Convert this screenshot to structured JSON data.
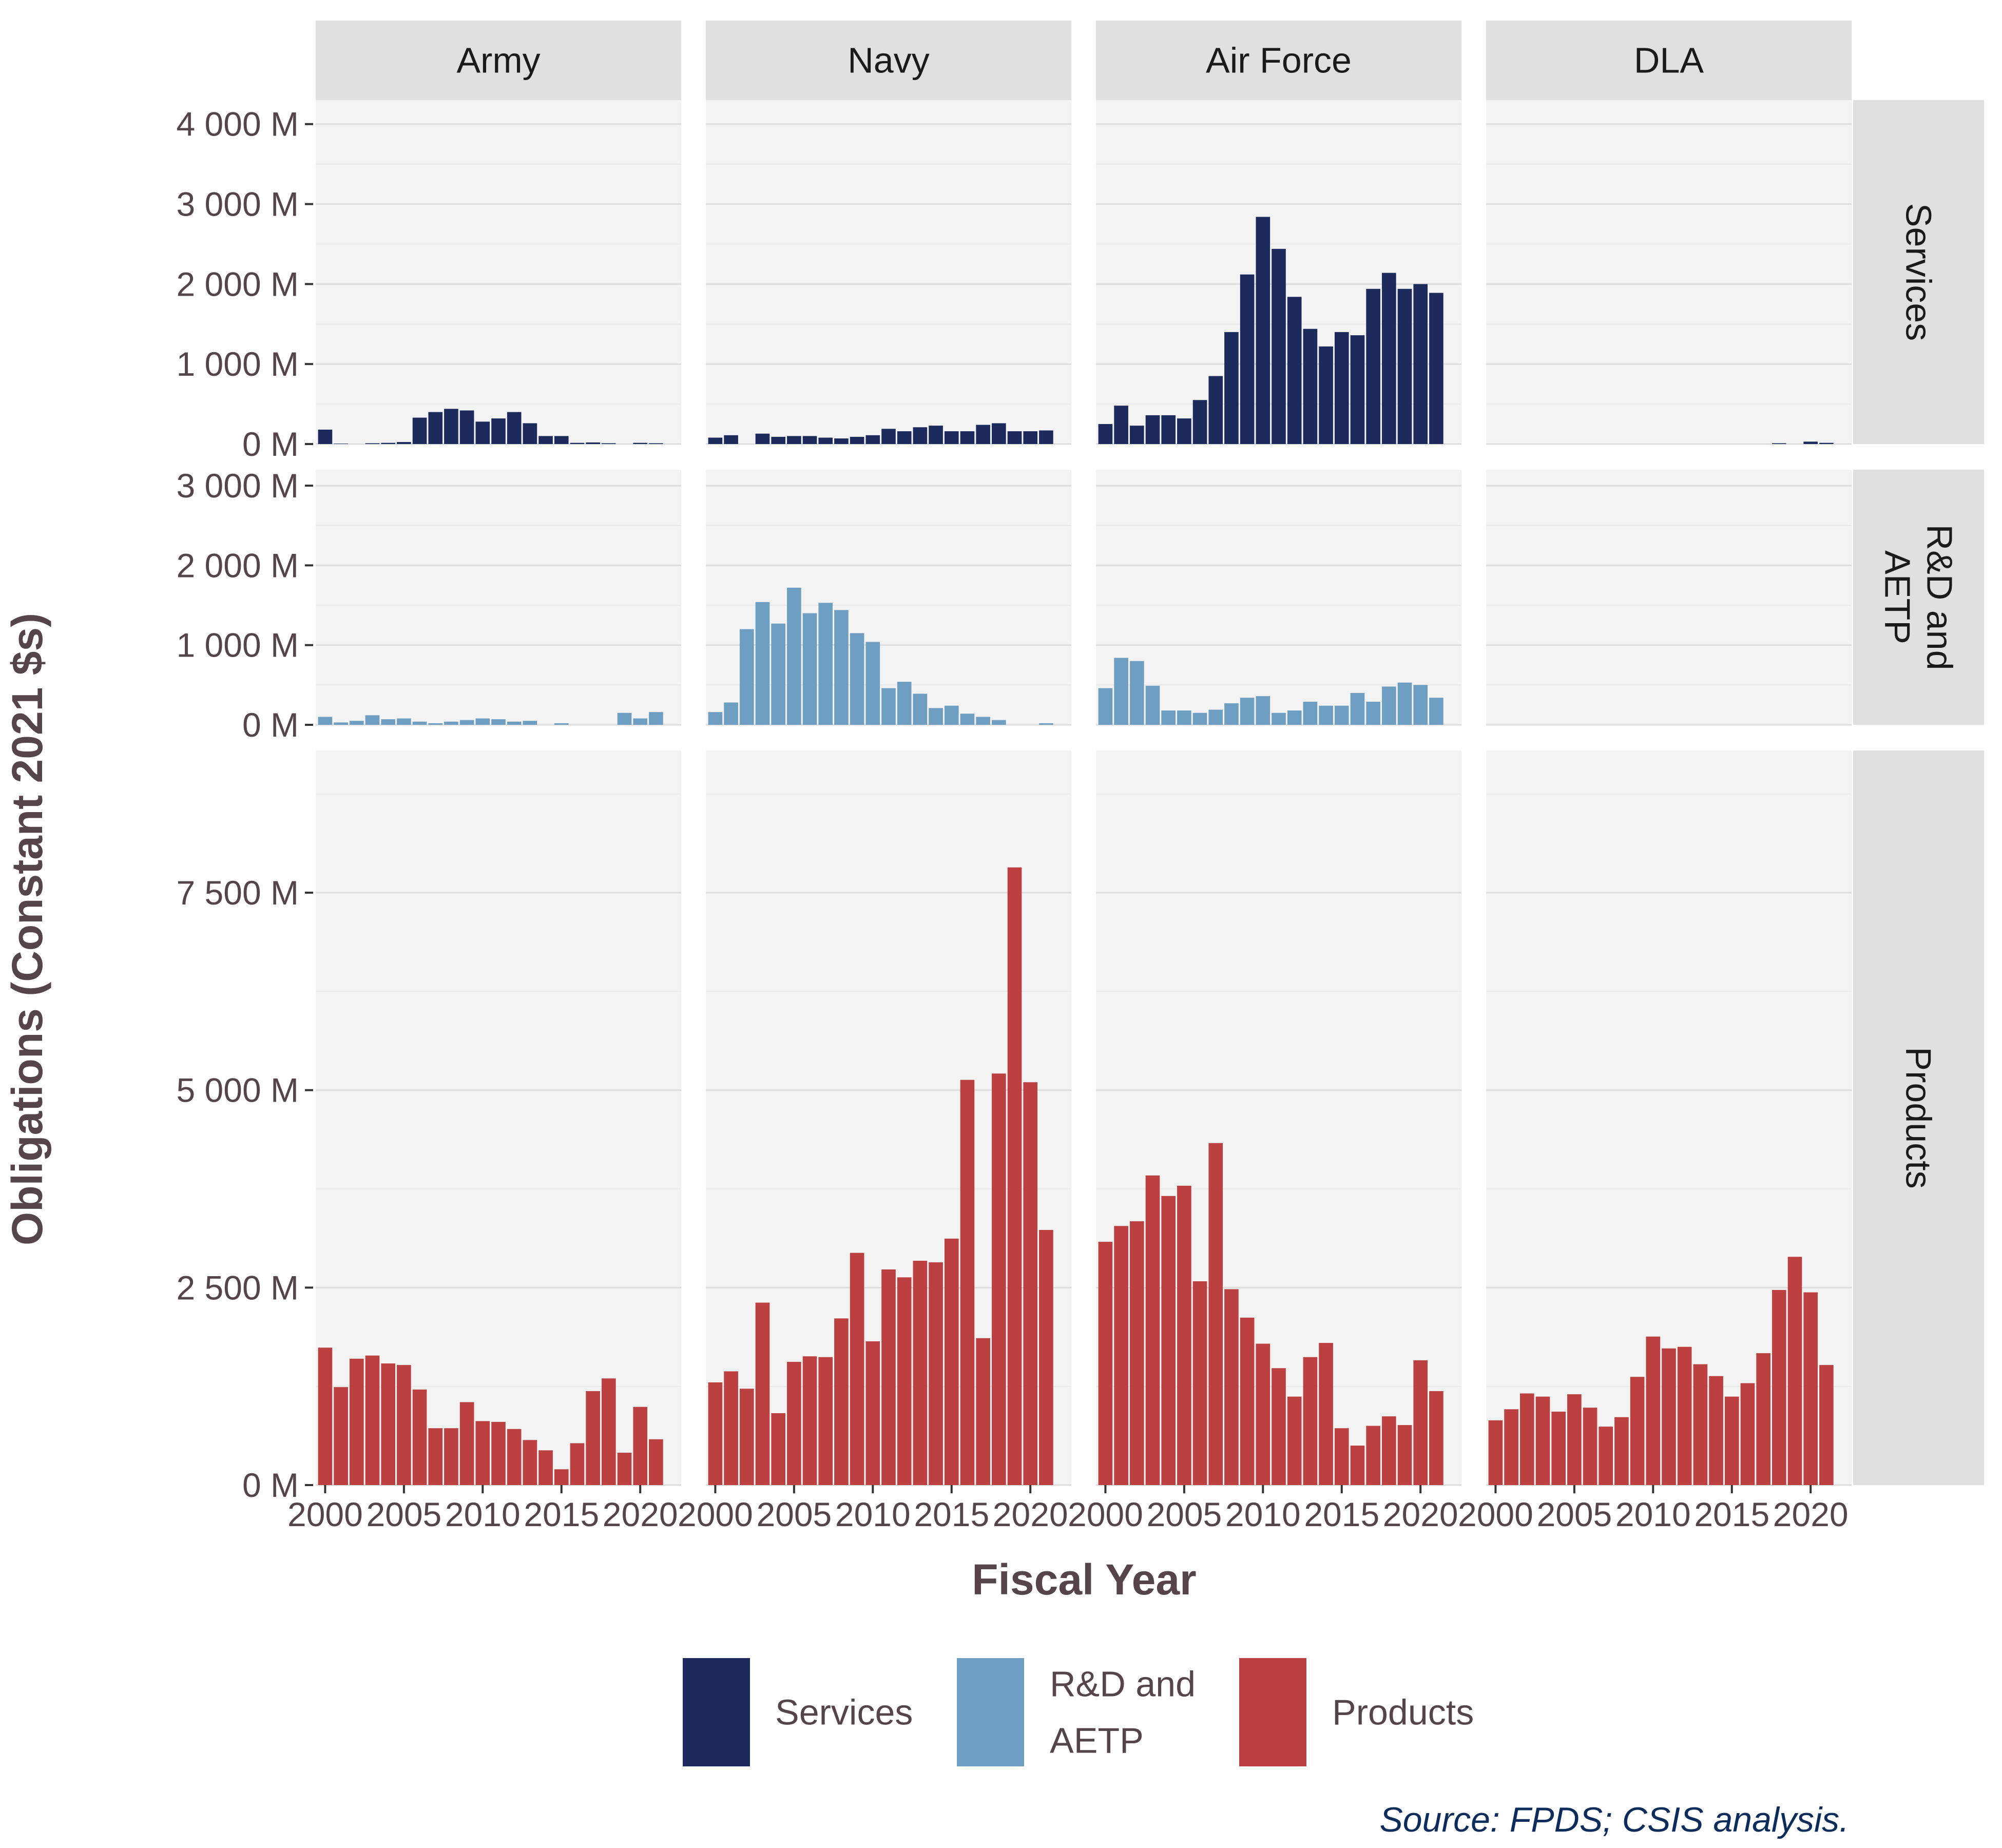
{
  "chart_data": {
    "type": "bar",
    "x_label": "Fiscal Year",
    "y_label": "Obligations (Constant 2021 $s)",
    "source": "Source: FPDS; CSIS analysis.",
    "years": [
      2000,
      2001,
      2002,
      2003,
      2004,
      2005,
      2006,
      2007,
      2008,
      2009,
      2010,
      2011,
      2012,
      2013,
      2014,
      2015,
      2016,
      2017,
      2018,
      2019,
      2020,
      2021
    ],
    "x_tick_values": [
      2000,
      2005,
      2010,
      2015,
      2020
    ],
    "x_tick_labels": [
      "2000",
      "2005",
      "2010",
      "2015",
      "2020"
    ],
    "column_facets": [
      "Army",
      "Navy",
      "Air Force",
      "DLA"
    ],
    "colors": {
      "Services": "#1d2b5c",
      "R&D and AETP": "#6e9ec2",
      "Products": "#bc4040"
    },
    "panel_background": "#f3f3f3",
    "strip_background": "#e0e0e0",
    "grid": true,
    "legend_position": "bottom",
    "legend": [
      {
        "key": "Services",
        "lines": [
          "Services"
        ]
      },
      {
        "key": "R&D and AETP",
        "lines": [
          "R&D and",
          "AETP"
        ]
      },
      {
        "key": "Products",
        "lines": [
          "Products"
        ]
      }
    ],
    "rows": [
      {
        "label_lines": [
          "Services"
        ],
        "key": "Services",
        "ylim": [
          0,
          4300
        ],
        "y_ticks": [
          0,
          1000,
          2000,
          3000,
          4000
        ],
        "y_tick_labels": [
          "0 M",
          "1 000 M",
          "2 000 M",
          "3 000 M",
          "4 000 M"
        ],
        "series": {
          "Army": [
            180,
            5,
            0,
            10,
            15,
            25,
            330,
            400,
            440,
            420,
            280,
            320,
            400,
            260,
            100,
            100,
            15,
            20,
            10,
            0,
            15,
            10
          ],
          "Navy": [
            80,
            110,
            0,
            130,
            90,
            100,
            100,
            80,
            70,
            90,
            110,
            190,
            160,
            210,
            230,
            160,
            160,
            240,
            260,
            160,
            160,
            170
          ],
          "Air Force": [
            250,
            480,
            230,
            360,
            360,
            320,
            550,
            850,
            1400,
            2120,
            2840,
            2440,
            1840,
            1440,
            1220,
            1400,
            1360,
            1940,
            2140,
            1940,
            2000,
            1890
          ],
          "DLA": [
            0,
            0,
            0,
            0,
            0,
            0,
            0,
            0,
            0,
            0,
            0,
            0,
            0,
            0,
            0,
            0,
            0,
            0,
            10,
            0,
            30,
            15
          ]
        }
      },
      {
        "label_lines": [
          "R&D and",
          "AETP"
        ],
        "key": "R&D and AETP",
        "ylim": [
          0,
          3200
        ],
        "y_ticks": [
          0,
          1000,
          2000,
          3000
        ],
        "y_tick_labels": [
          "0 M",
          "1 000 M",
          "2 000 M",
          "3 000 M"
        ],
        "series": {
          "Army": [
            100,
            30,
            50,
            120,
            70,
            80,
            40,
            20,
            40,
            60,
            80,
            70,
            40,
            50,
            0,
            20,
            0,
            0,
            0,
            150,
            80,
            160
          ],
          "Navy": [
            160,
            280,
            1200,
            1540,
            1270,
            1720,
            1400,
            1530,
            1440,
            1150,
            1040,
            460,
            540,
            390,
            210,
            240,
            140,
            100,
            60,
            0,
            0,
            20
          ],
          "Air Force": [
            460,
            840,
            800,
            490,
            180,
            180,
            150,
            190,
            270,
            340,
            360,
            150,
            180,
            290,
            240,
            240,
            400,
            290,
            480,
            530,
            500,
            340
          ],
          "DLA": [
            0,
            0,
            0,
            0,
            0,
            0,
            0,
            0,
            0,
            0,
            0,
            0,
            0,
            0,
            0,
            0,
            0,
            0,
            0,
            0,
            0,
            0
          ]
        }
      },
      {
        "label_lines": [
          "Products"
        ],
        "key": "Products",
        "ylim": [
          0,
          9300
        ],
        "y_ticks": [
          0,
          2500,
          5000,
          7500
        ],
        "y_tick_labels": [
          "0 M",
          "2 500 M",
          "5 000 M",
          "7 500 M"
        ],
        "series": {
          "Army": [
            1740,
            1240,
            1600,
            1640,
            1540,
            1520,
            1210,
            720,
            720,
            1050,
            810,
            800,
            710,
            570,
            440,
            200,
            530,
            1190,
            1350,
            410,
            990,
            580
          ],
          "Navy": [
            1300,
            1440,
            1220,
            2310,
            910,
            1560,
            1630,
            1620,
            2110,
            2940,
            1820,
            2730,
            2630,
            2840,
            2820,
            3120,
            5130,
            1860,
            5210,
            7820,
            5100,
            3230
          ],
          "Air Force": [
            3080,
            3280,
            3340,
            3920,
            3660,
            3790,
            2580,
            4330,
            2480,
            2120,
            1790,
            1480,
            1120,
            1620,
            1800,
            720,
            500,
            750,
            870,
            760,
            1580,
            1190
          ],
          "DLA": [
            820,
            960,
            1160,
            1120,
            930,
            1150,
            980,
            740,
            860,
            1370,
            1880,
            1730,
            1750,
            1530,
            1380,
            1120,
            1290,
            1670,
            2470,
            2890,
            2440,
            1520
          ]
        }
      }
    ]
  }
}
